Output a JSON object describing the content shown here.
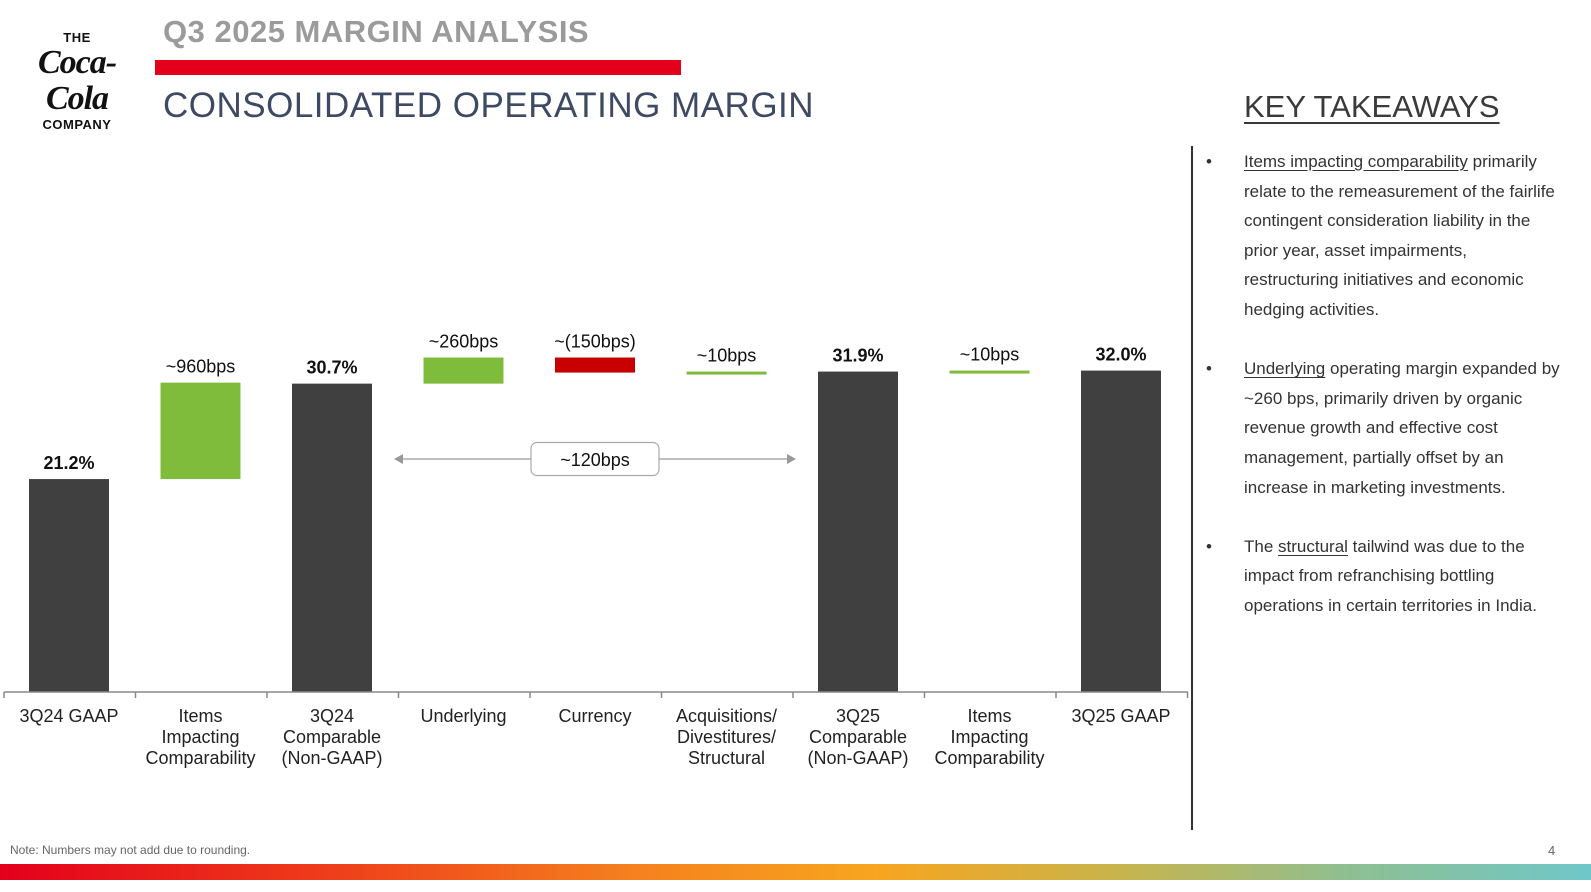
{
  "header": {
    "section_title": "Q3 2025 MARGIN ANALYSIS",
    "chart_title": "CONSOLIDATED OPERATING MARGIN"
  },
  "logo": {
    "top": "THE",
    "script": "Coca-Cola",
    "bottom": "COMPANY"
  },
  "key_takeaways": {
    "heading": "KEY TAKEAWAYS",
    "bullets": [
      {
        "pre": "",
        "link": "Items impacting comparability",
        "post": " primarily relate to the remeasurement of the fairlife contingent consideration liability in the prior year, asset impairments, restructuring initiatives and economic hedging activities."
      },
      {
        "pre": "",
        "link": "Underlying",
        "post": " operating margin expanded by ~260 bps, primarily driven by organic revenue growth and effective cost management, partially offset by an increase in marketing investments."
      },
      {
        "pre": "The ",
        "link": "structural",
        "post": " tailwind was due to the impact from refranchising bottling operations in certain territories in India."
      }
    ]
  },
  "chart_data": {
    "type": "bar",
    "subtype": "waterfall",
    "unit": "%",
    "ylim": [
      0,
      45
    ],
    "grid": false,
    "colors": {
      "total": "#404040",
      "increase": "#80bc3b",
      "decrease": "#c80000"
    },
    "categories": [
      [
        "3Q24 GAAP"
      ],
      [
        "Items",
        "Impacting",
        "Comparability"
      ],
      [
        "3Q24",
        "Comparable",
        "(Non-GAAP)"
      ],
      [
        "Underlying"
      ],
      [
        "Currency"
      ],
      [
        "Acquisitions/",
        "Divestitures/",
        "Structural"
      ],
      [
        "3Q25",
        "Comparable",
        "(Non-GAAP)"
      ],
      [
        "Items",
        "Impacting",
        "Comparability"
      ],
      [
        "3Q25 GAAP"
      ]
    ],
    "bars": [
      {
        "kind": "total",
        "start": 0,
        "end": 21.2,
        "label": "21.2%"
      },
      {
        "kind": "increase",
        "start": 21.2,
        "end": 30.8,
        "label": "~960bps"
      },
      {
        "kind": "total",
        "start": 0,
        "end": 30.7,
        "label": "30.7%"
      },
      {
        "kind": "increase",
        "start": 30.7,
        "end": 33.3,
        "label": "~260bps"
      },
      {
        "kind": "decrease",
        "start": 33.3,
        "end": 31.8,
        "label": "~(150bps)"
      },
      {
        "kind": "increase",
        "start": 31.8,
        "end": 31.9,
        "label": "~10bps"
      },
      {
        "kind": "total",
        "start": 0,
        "end": 31.9,
        "label": "31.9%"
      },
      {
        "kind": "increase",
        "start": 31.9,
        "end": 32.0,
        "label": "~10bps"
      },
      {
        "kind": "total",
        "start": 0,
        "end": 32.0,
        "label": "32.0%"
      }
    ],
    "annotation": {
      "text": "~120bps",
      "from_category": 2,
      "to_category": 6
    }
  },
  "footer": {
    "note": "Note: Numbers may not add due to rounding.",
    "page_number": "4"
  }
}
